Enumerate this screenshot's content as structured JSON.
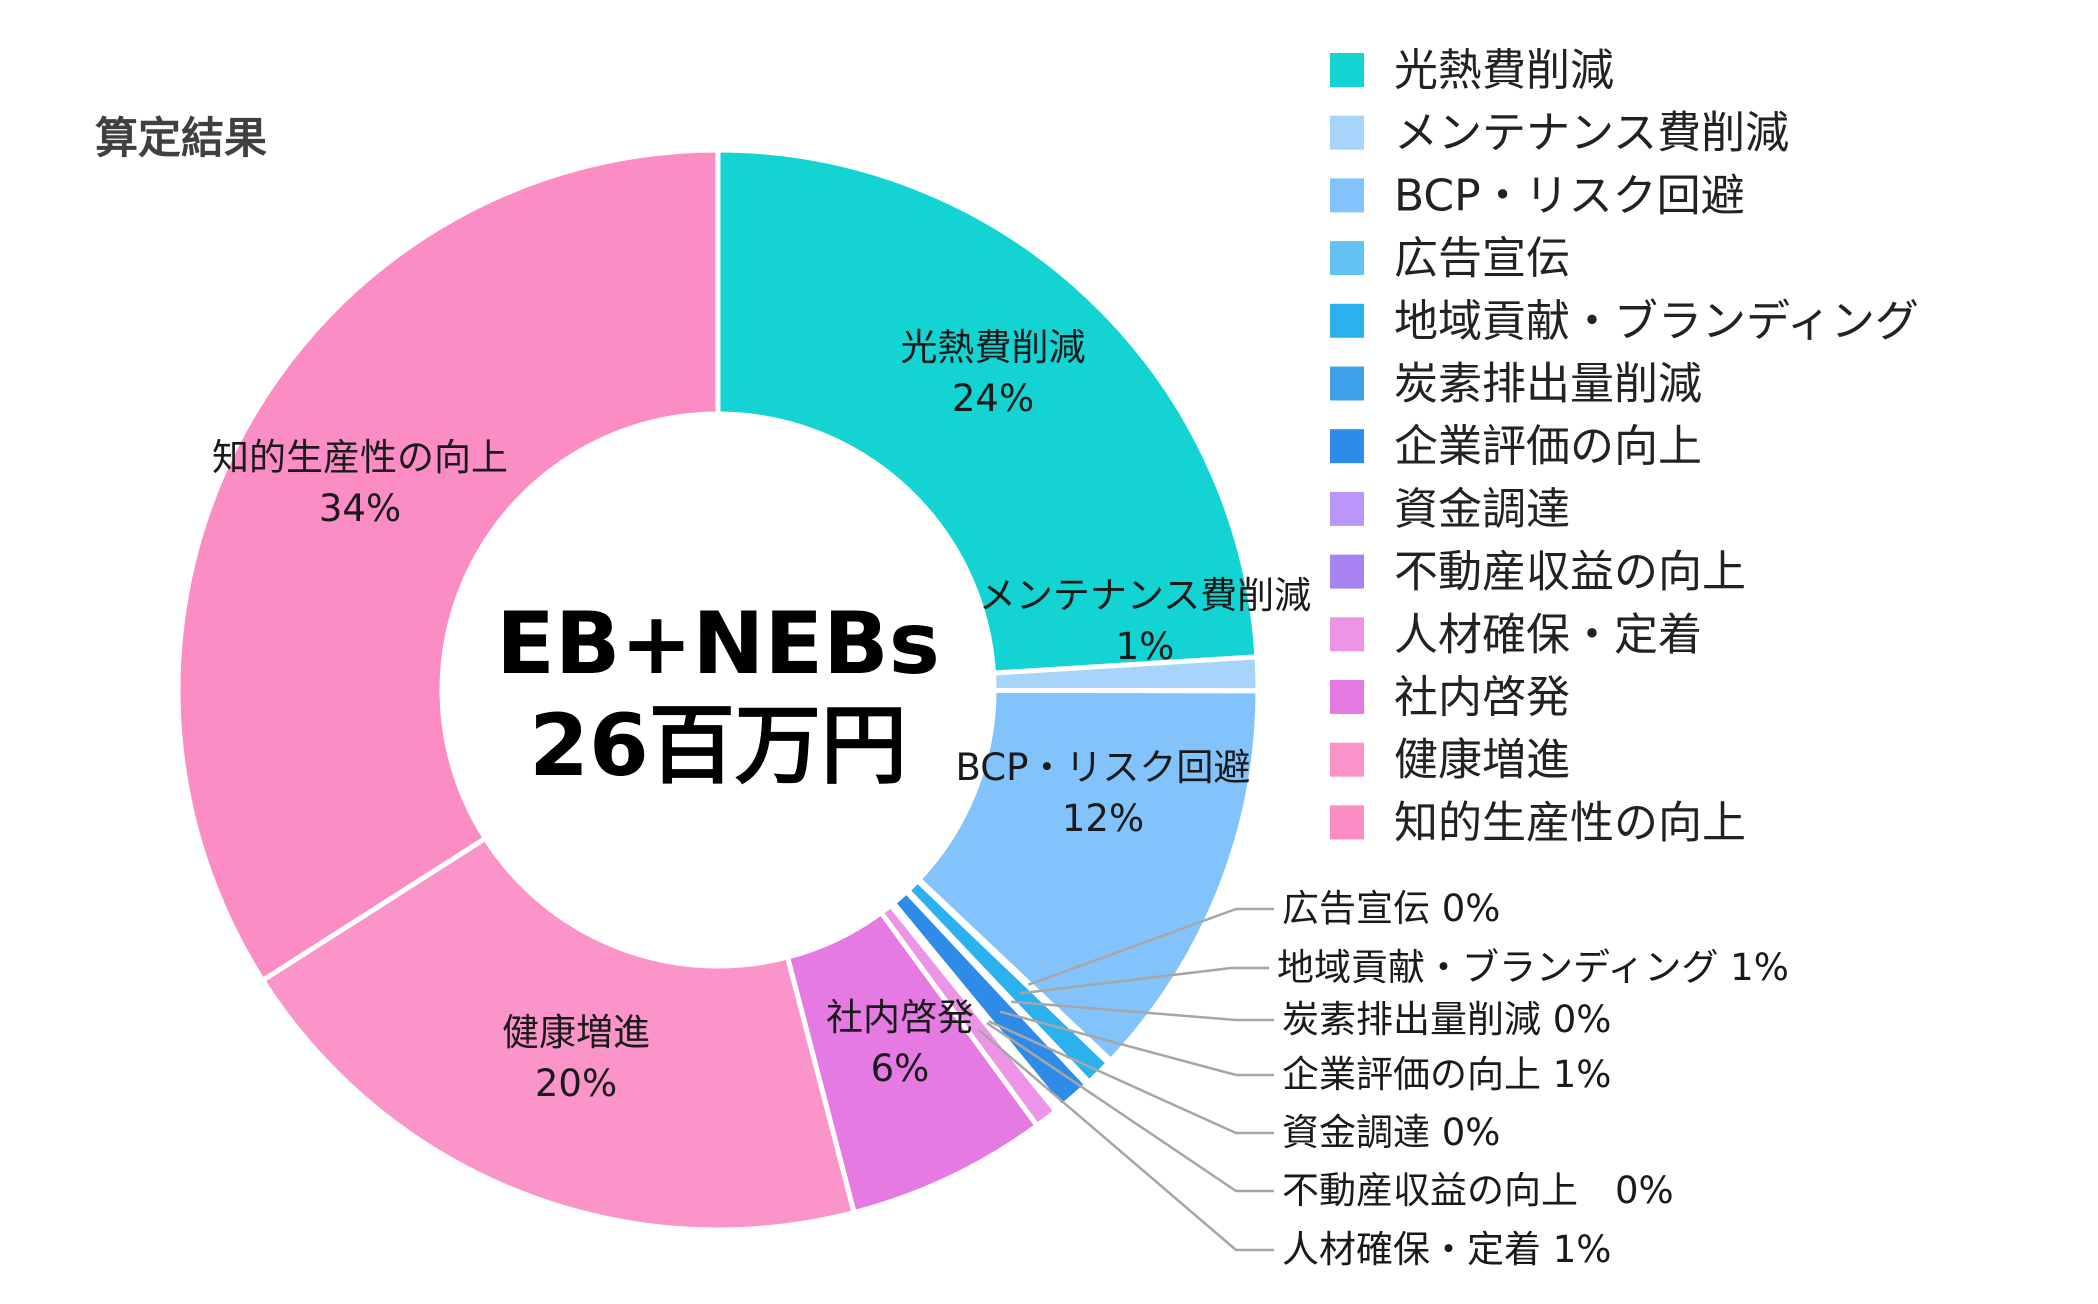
{
  "chart_data": {
    "type": "donut",
    "title": "算定結果",
    "center": {
      "line1": "EB+NEBs",
      "line2": "26百万円"
    },
    "slices": [
      {
        "name": "光熱費削減",
        "value": 24,
        "label": "24%",
        "color": "#13d3d3"
      },
      {
        "name": "メンテナンス費削減",
        "value": 1,
        "label": "1%",
        "color": "#a6d4fa"
      },
      {
        "name": "BCP・リスク回避",
        "value": 12,
        "label": "12%",
        "color": "#82c3fb"
      },
      {
        "name": "広告宣伝",
        "value": 0.1,
        "label": "0%",
        "color": "#62c2f0"
      },
      {
        "name": "地域貢献・ブランディング",
        "value": 0.8,
        "label": "1%",
        "color": "#2ab1ee"
      },
      {
        "name": "炭素排出量削減",
        "value": 0.1,
        "label": "0%",
        "color": "#41a0ea"
      },
      {
        "name": "企業評価の向上",
        "value": 1,
        "label": "1%",
        "color": "#2f8be8"
      },
      {
        "name": "資金調達",
        "value": 0.1,
        "label": "0%",
        "color": "#b997fa"
      },
      {
        "name": "不動産収益の向上",
        "value": 0.1,
        "label": "0%",
        "color": "#a884f3"
      },
      {
        "name": "人材確保・定着",
        "value": 0.7,
        "label": "1%",
        "color": "#ee94e6"
      },
      {
        "name": "社内啓発",
        "value": 6,
        "label": "6%",
        "color": "#e57ae2"
      },
      {
        "name": "健康増進",
        "value": 20,
        "label": "20%",
        "color": "#fb94c9"
      },
      {
        "name": "知的生産性の向上",
        "value": 34,
        "label": "34%",
        "color": "#fb8cc4"
      }
    ],
    "legend_position": "right",
    "callouts": [
      "広告宣伝 0%",
      "地域貢献・ブランディング 1%",
      "炭素排出量削減 0%",
      "企業評価の向上 1%",
      "資金調達 0%",
      "不動産収益の向上　0%",
      "人材確保・定着 1%"
    ]
  }
}
